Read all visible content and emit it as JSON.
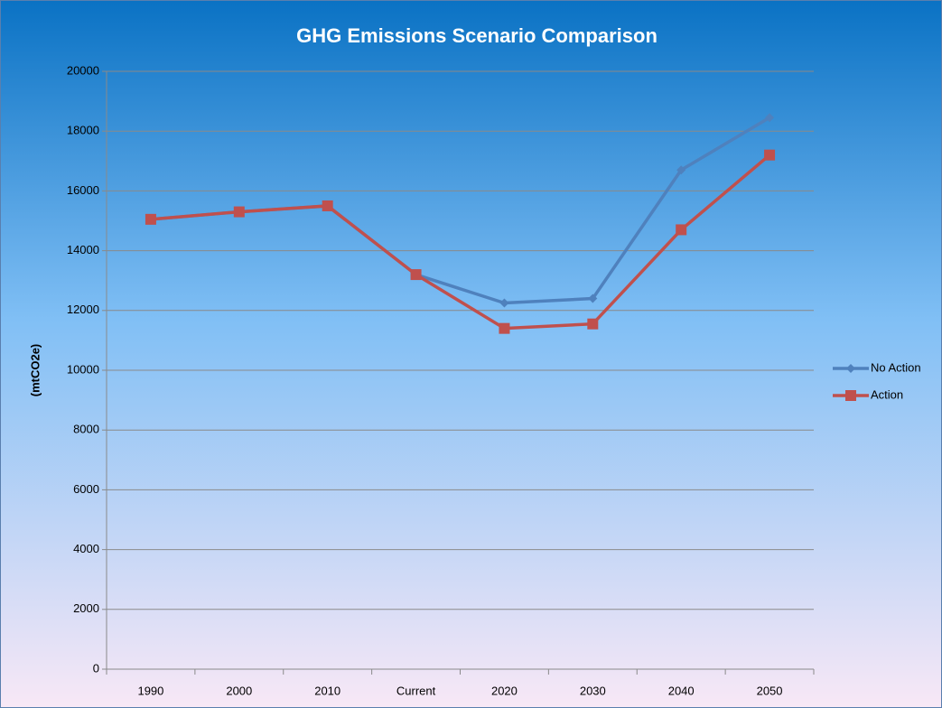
{
  "chart_data": {
    "type": "line",
    "title": "GHG Emissions Scenario Comparison",
    "y_label": "(mtCO2e)",
    "categories": [
      "1990",
      "2000",
      "2010",
      "Current",
      "2020",
      "2030",
      "2040",
      "2050"
    ],
    "series": [
      {
        "name": "No Action",
        "color": "#4f81bd",
        "marker": "diamond",
        "values": [
          15050,
          15300,
          15500,
          13200,
          12250,
          12400,
          16700,
          18450
        ]
      },
      {
        "name": "Action",
        "color": "#c0504d",
        "marker": "square",
        "values": [
          15050,
          15300,
          15500,
          13200,
          11400,
          11550,
          14700,
          17200
        ]
      }
    ],
    "ylim": [
      0,
      20000
    ],
    "yticks": [
      0,
      2000,
      4000,
      6000,
      8000,
      10000,
      12000,
      14000,
      16000,
      18000,
      20000
    ],
    "grid": true,
    "legend": "right"
  }
}
